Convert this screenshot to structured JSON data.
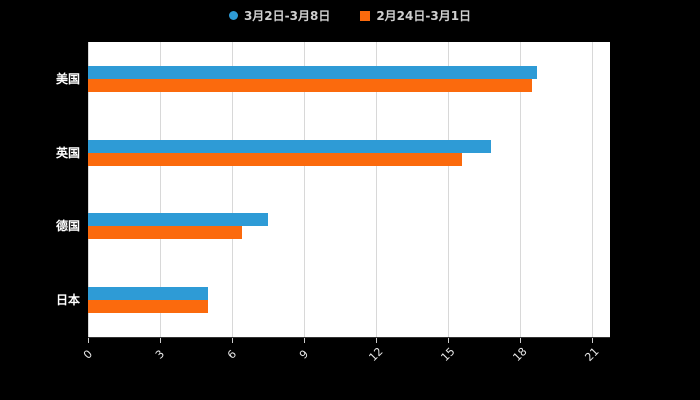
{
  "chart_data": {
    "type": "bar",
    "orientation": "horizontal",
    "title": "",
    "categories": [
      "美国",
      "英国",
      "德国",
      "日本"
    ],
    "series": [
      {
        "name": "3月2日-3月8日",
        "marker": "circle",
        "color": "#2E9BD6",
        "values": [
          18.7,
          16.8,
          7.5,
          5.0
        ]
      },
      {
        "name": "2月24日-3月1日",
        "marker": "square",
        "color": "#FB6A0D",
        "values": [
          18.5,
          15.6,
          6.4,
          5.0
        ]
      }
    ],
    "xticks": [
      0,
      3,
      6,
      9,
      12,
      15,
      18,
      21
    ],
    "xlim": [
      0,
      21
    ],
    "grid": true,
    "legend_position": "top",
    "colors": {
      "page_bg": "#000000",
      "plot_bg": "#ffffff",
      "gridline": "#d8d8d8",
      "axis_line": "#333333",
      "category_label": "#ffffff",
      "tick_label": "#e8e8e8",
      "tick_mark": "#cccccc",
      "legend_text": "#cfcfcf"
    }
  }
}
